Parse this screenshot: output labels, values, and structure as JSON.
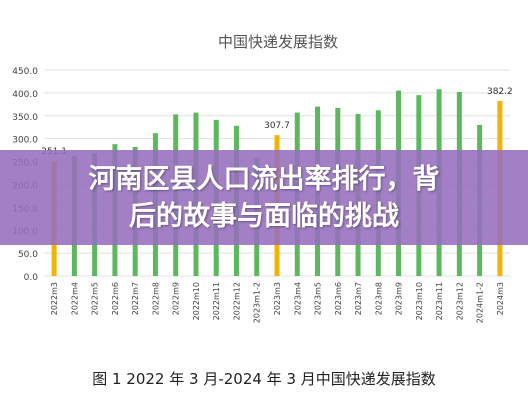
{
  "chart_data": {
    "type": "bar",
    "title": "中国快递发展指数",
    "categories": [
      "2022m3",
      "2022m4",
      "2022m5",
      "2022m6",
      "2022m7",
      "2022m8",
      "2022m9",
      "2022m10",
      "2022m11",
      "2022m12",
      "2023m1-2",
      "2023m3",
      "2023m4",
      "2023m5",
      "2023m6",
      "2023m7",
      "2023m8",
      "2023m9",
      "2023m10",
      "2023m11",
      "2023m12",
      "2024m1-2",
      "2024m3"
    ],
    "values": [
      251.1,
      262,
      268,
      288,
      282,
      312,
      353,
      357,
      341,
      328,
      258,
      307.7,
      357,
      370,
      367,
      354,
      362,
      405,
      395,
      408,
      402,
      330,
      382.2
    ],
    "highlight_indices": [
      0,
      11,
      22
    ],
    "data_labels": [
      {
        "index": 0,
        "text": "251.1"
      },
      {
        "index": 11,
        "text": "307.7"
      },
      {
        "index": 22,
        "text": "382.2"
      }
    ],
    "yticks": [
      "0.0",
      "50.0",
      "100.0",
      "150.0",
      "200.0",
      "250.0",
      "300.0",
      "350.0",
      "400.0",
      "450.0"
    ],
    "ylim": [
      0,
      450
    ],
    "grid": true,
    "colors": {
      "bar": "#5cb85c",
      "highlight": "#f5b301",
      "grid": "#e0e0e0",
      "text": "#444444"
    }
  },
  "banner": {
    "line1": "河南区县人口流出率排行，背",
    "line2": "后的故事与面临的挑战",
    "color": "#966ebe"
  },
  "caption": "图 1  2022 年 3 月-2024 年 3 月中国快递发展指数"
}
